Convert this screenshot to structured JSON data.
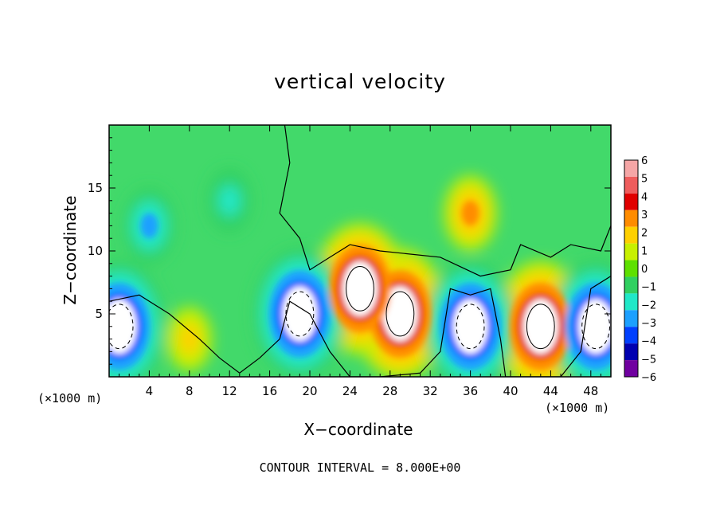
{
  "chart_data": {
    "type": "heatmap",
    "title": "vertical velocity",
    "xlabel": "X−coordinate",
    "ylabel": "Z−coordinate",
    "x_unit_left": "(×1000 m)",
    "x_unit_right": "(×1000 m)",
    "footer": "CONTOUR INTERVAL = 8.000E+00",
    "xlim": [
      0,
      50
    ],
    "ylim": [
      0,
      20
    ],
    "x_ticks": [
      4,
      8,
      12,
      16,
      20,
      24,
      28,
      32,
      36,
      40,
      44,
      48
    ],
    "x_tick_labels": [
      "4",
      "8",
      "12",
      "16",
      "20",
      "24",
      "28",
      "32",
      "36",
      "40",
      "44",
      "48"
    ],
    "y_ticks": [
      5,
      10,
      15
    ],
    "y_tick_labels": [
      "5",
      "10",
      "15"
    ],
    "colorbar": {
      "levels": [
        6,
        5,
        4,
        3,
        2,
        1,
        0,
        -1,
        -2,
        -3,
        -4,
        -5,
        -6
      ],
      "labels": [
        "6",
        "5",
        "4",
        "3",
        "2",
        "1",
        "0",
        "−1",
        "−2",
        "−3",
        "−4",
        "−5",
        "−6"
      ],
      "colors": [
        "#f5a6a6",
        "#ef5d5d",
        "#e00000",
        "#ff8c00",
        "#ffd000",
        "#c8f000",
        "#5ee000",
        "#30d060",
        "#20e8c8",
        "#1ca0ff",
        "#0040ff",
        "#0000b0",
        "#7000a0"
      ]
    },
    "background_value_color": "#42d96a",
    "features": [
      {
        "x": 29,
        "z": 5,
        "value": 8,
        "kind": "updraft"
      },
      {
        "x": 43,
        "z": 4,
        "value": 8,
        "kind": "updraft"
      },
      {
        "x": 25,
        "z": 7,
        "value": 8,
        "kind": "updraft"
      },
      {
        "x": 36,
        "z": 4,
        "value": -8,
        "kind": "downdraft"
      },
      {
        "x": 19,
        "z": 5,
        "value": -8,
        "kind": "downdraft"
      },
      {
        "x": 1,
        "z": 4,
        "value": -8,
        "kind": "downdraft"
      },
      {
        "x": 48.5,
        "z": 4,
        "value": -8,
        "kind": "downdraft"
      },
      {
        "x": 4,
        "z": 12,
        "value": -3,
        "kind": "downdraft"
      },
      {
        "x": 12,
        "z": 14,
        "value": -2,
        "kind": "downdraft"
      },
      {
        "x": 36,
        "z": 13,
        "value": 3,
        "kind": "updraft"
      },
      {
        "x": 8,
        "z": 3,
        "value": 2,
        "kind": "updraft"
      }
    ]
  }
}
